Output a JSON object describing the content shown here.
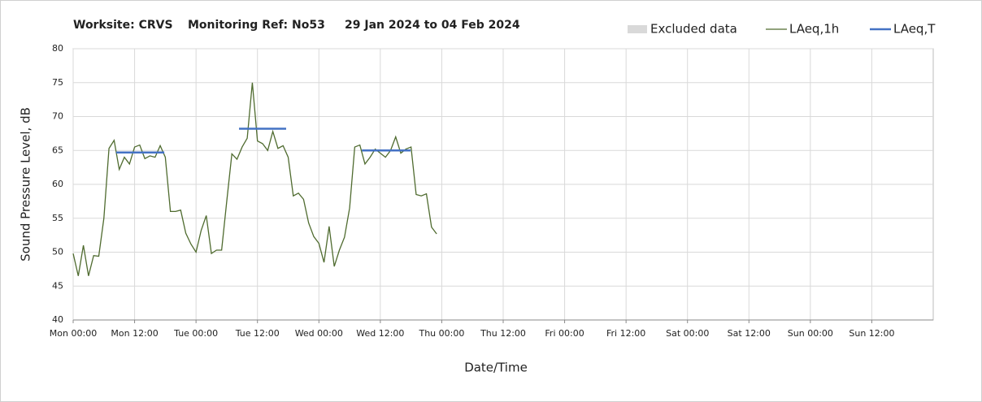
{
  "chart_data": {
    "type": "line",
    "title_parts": [
      "Worksite: CRVS",
      "Monitoring Ref: No53",
      "29 Jan 2024 to 04 Feb 2024"
    ],
    "x_label": "Date/Time",
    "y_label": "Sound Pressure Level, dB",
    "excluded_data": {
      "name": "Excluded data",
      "color": "#d9d9d9"
    },
    "xlim": [
      0,
      168
    ],
    "xticks": [
      {
        "value": 0,
        "label": "Mon 00:00"
      },
      {
        "value": 12,
        "label": "Mon 12:00"
      },
      {
        "value": 24,
        "label": "Tue 00:00"
      },
      {
        "value": 36,
        "label": "Tue 12:00"
      },
      {
        "value": 48,
        "label": "Wed 00:00"
      },
      {
        "value": 60,
        "label": "Wed 12:00"
      },
      {
        "value": 72,
        "label": "Thu 00:00"
      },
      {
        "value": 84,
        "label": "Thu 12:00"
      },
      {
        "value": 96,
        "label": "Fri 00:00"
      },
      {
        "value": 108,
        "label": "Fri 12:00"
      },
      {
        "value": 120,
        "label": "Sat 00:00"
      },
      {
        "value": 132,
        "label": "Sat 12:00"
      },
      {
        "value": 144,
        "label": "Sun 00:00"
      },
      {
        "value": 156,
        "label": "Sun 12:00"
      }
    ],
    "ylim": [
      40,
      80
    ],
    "yticks": [
      40,
      45,
      50,
      55,
      60,
      65,
      70,
      75,
      80
    ],
    "grid": true,
    "series": [
      {
        "name": "LAeq,1h",
        "color": "#4f6b2f",
        "x": [
          0,
          1,
          2,
          3,
          4,
          5,
          6,
          7,
          8,
          9,
          10,
          11,
          12,
          13,
          14,
          15,
          16,
          17,
          18,
          19,
          20,
          21,
          22,
          23,
          24,
          25,
          26,
          27,
          28,
          29,
          30,
          31,
          32,
          33,
          34,
          35,
          36,
          37,
          38,
          39,
          40,
          41,
          42,
          43,
          44,
          45,
          46,
          47,
          48,
          49,
          50,
          51,
          52,
          53,
          54,
          55,
          56,
          57,
          58,
          59,
          60,
          61,
          62,
          63,
          64,
          65,
          66,
          67,
          68,
          69,
          70,
          71
        ],
        "values": [
          49.8,
          46.5,
          51,
          46.5,
          49.5,
          49.4,
          55,
          65.3,
          66.5,
          62.2,
          64,
          63,
          65.5,
          65.8,
          63.8,
          64.2,
          64,
          65.7,
          64,
          56,
          56,
          56.2,
          52.8,
          51.2,
          50,
          53.2,
          55.4,
          49.8,
          50.3,
          50.3,
          57.5,
          64.5,
          63.7,
          65.5,
          66.8,
          75,
          66.4,
          66,
          65,
          67.8,
          65.3,
          65.7,
          64,
          58.3,
          58.7,
          57.8,
          54.3,
          52.3,
          51.3,
          48.5,
          53.8,
          47.9,
          50.3,
          52.2,
          56.5,
          65.5,
          65.8,
          63,
          64,
          65.2,
          64.6,
          64,
          65,
          67,
          64.6,
          65.2,
          65.5,
          58.5,
          58.3,
          58.6,
          53.7,
          52.7
        ]
      },
      {
        "name": "LAeq,T",
        "color": "#4472c4",
        "x": [
          8.4,
          17.8,
          null,
          32.4,
          41.6,
          null,
          56.4,
          65.9
        ],
        "values": [
          64.7,
          64.7,
          null,
          68.2,
          68.2,
          null,
          65,
          65
        ]
      }
    ]
  }
}
